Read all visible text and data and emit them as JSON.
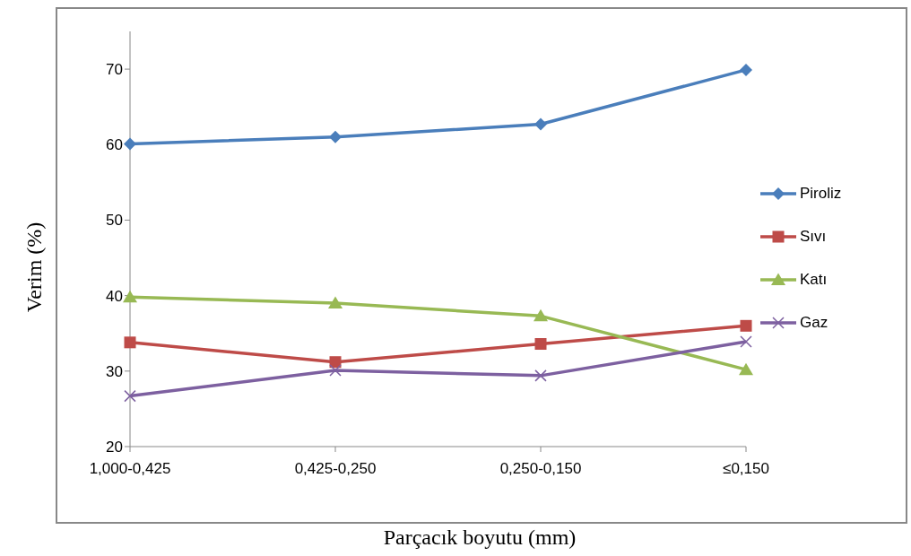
{
  "chart_data": {
    "type": "line",
    "xlabel": "Parçacık boyutu (mm)",
    "ylabel": "Verim (%)",
    "categories": [
      "1,000-0,425",
      "0,425-0,250",
      "0,250-0,150",
      "≤0,150"
    ],
    "series": [
      {
        "name": "Piroliz",
        "color": "#4a7ebb",
        "marker": "diamond",
        "values": [
          60.1,
          61.0,
          62.7,
          69.9
        ]
      },
      {
        "name": "Sıvı",
        "color": "#be4b48",
        "marker": "square",
        "values": [
          33.8,
          31.2,
          33.6,
          36.0
        ]
      },
      {
        "name": "Katı",
        "color": "#98b954",
        "marker": "triangle",
        "values": [
          39.8,
          39.0,
          37.3,
          30.2
        ]
      },
      {
        "name": "Gaz",
        "color": "#7d60a0",
        "marker": "cross",
        "values": [
          26.7,
          30.1,
          29.4,
          33.9
        ]
      }
    ],
    "ylim": [
      20,
      75
    ],
    "yticks": [
      20,
      30,
      40,
      50,
      60,
      70
    ],
    "grid": false,
    "legend": "right",
    "line_style": "solid"
  }
}
